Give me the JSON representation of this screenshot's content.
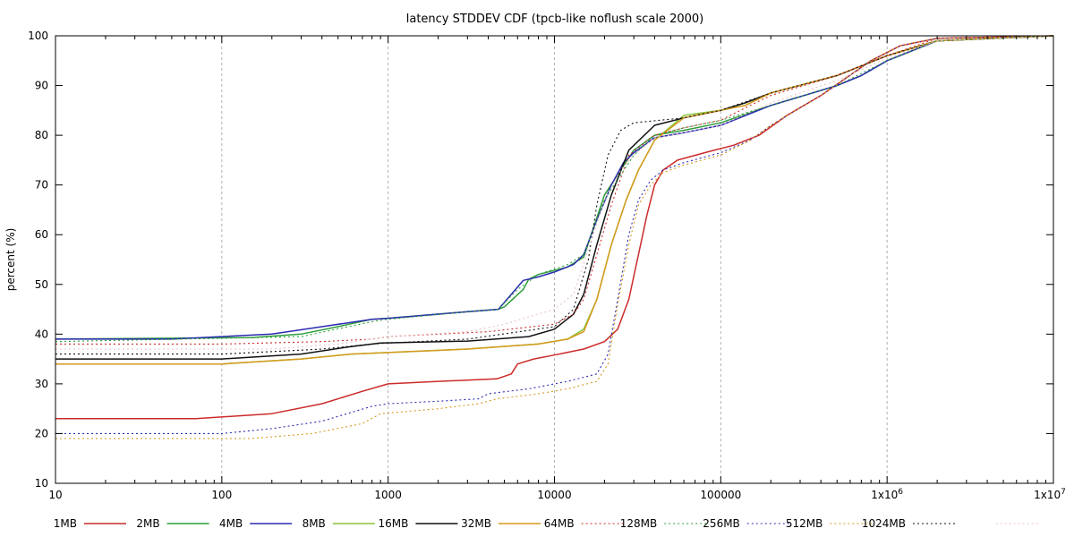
{
  "chart_data": {
    "type": "line",
    "title": "latency STDDEV CDF (tpcb-like noflush scale 2000)",
    "xlabel": "",
    "ylabel": "percent (%)",
    "x_scale": "log",
    "xlim": [
      10,
      10000000
    ],
    "ylim": [
      10,
      100
    ],
    "x_ticks": [
      {
        "value": 10,
        "label": "10",
        "sup": ""
      },
      {
        "value": 100,
        "label": "100",
        "sup": ""
      },
      {
        "value": 1000,
        "label": "1000",
        "sup": ""
      },
      {
        "value": 10000,
        "label": "10000",
        "sup": ""
      },
      {
        "value": 100000,
        "label": "100000",
        "sup": ""
      },
      {
        "value": 1000000,
        "label": "1x10",
        "sup": "6"
      },
      {
        "value": 10000000,
        "label": "1x10",
        "sup": "7"
      }
    ],
    "y_ticks": [
      10,
      20,
      30,
      40,
      50,
      60,
      70,
      80,
      90,
      100
    ],
    "grid_x": true,
    "grid_y": false,
    "legend_position": "bottom",
    "series": [
      {
        "name": "1MB",
        "color": "#cc2a2a",
        "dash": "solid",
        "points": [
          [
            10,
            23
          ],
          [
            70,
            23
          ],
          [
            200,
            24
          ],
          [
            400,
            26
          ],
          [
            700,
            28.5
          ],
          [
            1000,
            30
          ],
          [
            2000,
            30.5
          ],
          [
            4500,
            31
          ],
          [
            5500,
            32
          ],
          [
            6000,
            34
          ],
          [
            7500,
            35
          ],
          [
            10000,
            35.8
          ],
          [
            15000,
            37
          ],
          [
            20000,
            38.5
          ],
          [
            24000,
            41
          ],
          [
            28000,
            47
          ],
          [
            32000,
            56
          ],
          [
            36000,
            64
          ],
          [
            40000,
            70
          ],
          [
            45000,
            73
          ],
          [
            55000,
            75
          ],
          [
            80000,
            76.5
          ],
          [
            120000,
            78
          ],
          [
            170000,
            80
          ],
          [
            250000,
            84
          ],
          [
            400000,
            88
          ],
          [
            800000,
            95
          ],
          [
            1200000,
            98
          ],
          [
            2000000,
            99.5
          ],
          [
            10000000,
            100
          ]
        ]
      },
      {
        "name": "2MB",
        "color": "#2e9e3a",
        "dash": "solid",
        "points": [
          [
            10,
            39
          ],
          [
            150,
            39.3
          ],
          [
            300,
            40
          ],
          [
            500,
            41.5
          ],
          [
            800,
            43
          ],
          [
            1000,
            43.2
          ],
          [
            3000,
            44.5
          ],
          [
            4600,
            45
          ],
          [
            5000,
            45.5
          ],
          [
            6500,
            49
          ],
          [
            7000,
            51
          ],
          [
            8000,
            52
          ],
          [
            12000,
            53.5
          ],
          [
            15000,
            55.5
          ],
          [
            20000,
            68
          ],
          [
            25000,
            73
          ],
          [
            30000,
            77
          ],
          [
            40000,
            80
          ],
          [
            60000,
            81
          ],
          [
            100000,
            82.5
          ],
          [
            200000,
            86
          ],
          [
            500000,
            90
          ],
          [
            700000,
            92
          ],
          [
            1000000,
            95
          ],
          [
            2000000,
            99
          ],
          [
            10000000,
            100
          ]
        ]
      },
      {
        "name": "4MB",
        "color": "#2b2bb0",
        "dash": "solid",
        "points": [
          [
            10,
            39
          ],
          [
            50,
            39
          ],
          [
            200,
            40
          ],
          [
            400,
            41.5
          ],
          [
            800,
            43
          ],
          [
            1000,
            43.2
          ],
          [
            3000,
            44.5
          ],
          [
            4600,
            45
          ],
          [
            5500,
            48
          ],
          [
            6500,
            50.8
          ],
          [
            8000,
            51.5
          ],
          [
            10000,
            52.5
          ],
          [
            13000,
            54
          ],
          [
            15000,
            56
          ],
          [
            18000,
            63
          ],
          [
            22000,
            70
          ],
          [
            26000,
            74.5
          ],
          [
            30000,
            76.5
          ],
          [
            40000,
            79.5
          ],
          [
            60000,
            80.5
          ],
          [
            100000,
            82
          ],
          [
            200000,
            86
          ],
          [
            500000,
            90
          ],
          [
            700000,
            92
          ],
          [
            1000000,
            95
          ],
          [
            2000000,
            99
          ],
          [
            10000000,
            100
          ]
        ]
      },
      {
        "name": "8MB",
        "color": "#8ac43a",
        "dash": "solid",
        "points": [
          [
            10,
            34
          ],
          [
            100,
            34
          ],
          [
            300,
            35
          ],
          [
            600,
            36
          ],
          [
            1000,
            36.3
          ],
          [
            3000,
            37
          ],
          [
            8000,
            38
          ],
          [
            12000,
            39
          ],
          [
            15000,
            41
          ],
          [
            18000,
            47
          ],
          [
            22000,
            58
          ],
          [
            27000,
            67
          ],
          [
            32000,
            73
          ],
          [
            40000,
            79
          ],
          [
            60000,
            84
          ],
          [
            100000,
            85
          ],
          [
            140000,
            86
          ],
          [
            200000,
            88.5
          ],
          [
            500000,
            92
          ],
          [
            1000000,
            96
          ],
          [
            2000000,
            99
          ],
          [
            10000000,
            100
          ]
        ]
      },
      {
        "name": "16MB",
        "color": "#111111",
        "dash": "solid",
        "points": [
          [
            10,
            35
          ],
          [
            100,
            35
          ],
          [
            300,
            36
          ],
          [
            600,
            37.5
          ],
          [
            900,
            38.2
          ],
          [
            3000,
            38.6
          ],
          [
            7000,
            39.5
          ],
          [
            10000,
            41
          ],
          [
            13000,
            44
          ],
          [
            15000,
            48
          ],
          [
            18000,
            58
          ],
          [
            22000,
            68
          ],
          [
            28000,
            77
          ],
          [
            40000,
            82
          ],
          [
            60000,
            83.5
          ],
          [
            100000,
            85
          ],
          [
            140000,
            86.5
          ],
          [
            200000,
            88.5
          ],
          [
            500000,
            92
          ],
          [
            1000000,
            96
          ],
          [
            2000000,
            99
          ],
          [
            10000000,
            100
          ]
        ]
      },
      {
        "name": "32MB",
        "color": "#d69a1e",
        "dash": "solid",
        "points": [
          [
            10,
            34
          ],
          [
            100,
            34
          ],
          [
            300,
            35
          ],
          [
            600,
            36
          ],
          [
            1000,
            36.3
          ],
          [
            3000,
            37
          ],
          [
            8000,
            38
          ],
          [
            12000,
            39
          ],
          [
            15000,
            40.5
          ],
          [
            18000,
            47
          ],
          [
            22000,
            58
          ],
          [
            27000,
            67
          ],
          [
            32000,
            73
          ],
          [
            40000,
            79
          ],
          [
            60000,
            83.5
          ],
          [
            100000,
            85
          ],
          [
            140000,
            86
          ],
          [
            200000,
            88.5
          ],
          [
            500000,
            92
          ],
          [
            1000000,
            96
          ],
          [
            2000000,
            99
          ],
          [
            10000000,
            100
          ]
        ]
      },
      {
        "name": "64MB",
        "color": "#cc2a2a",
        "dash": "dotted",
        "points": [
          [
            10,
            38
          ],
          [
            100,
            38
          ],
          [
            400,
            38.5
          ],
          [
            800,
            39
          ],
          [
            1000,
            39.5
          ],
          [
            4000,
            40.5
          ],
          [
            10000,
            42
          ],
          [
            13000,
            44
          ],
          [
            15000,
            47
          ],
          [
            18000,
            56
          ],
          [
            22000,
            66
          ],
          [
            28000,
            76
          ],
          [
            40000,
            80
          ],
          [
            60000,
            81.5
          ],
          [
            100000,
            83
          ],
          [
            150000,
            86
          ],
          [
            200000,
            88
          ],
          [
            500000,
            92
          ],
          [
            1000000,
            96
          ],
          [
            2000000,
            99.5
          ],
          [
            10000000,
            100
          ]
        ]
      },
      {
        "name": "128MB",
        "color": "#2e9e3a",
        "dash": "dotted",
        "points": [
          [
            10,
            38.5
          ],
          [
            300,
            39.5
          ],
          [
            800,
            42.5
          ],
          [
            1000,
            43
          ],
          [
            3000,
            44.5
          ],
          [
            4600,
            45
          ],
          [
            6000,
            49
          ],
          [
            8000,
            52
          ],
          [
            12000,
            54
          ],
          [
            15000,
            56
          ],
          [
            20000,
            67
          ],
          [
            25000,
            72
          ],
          [
            30000,
            76
          ],
          [
            40000,
            80
          ],
          [
            60000,
            81.5
          ],
          [
            100000,
            83
          ],
          [
            200000,
            86
          ],
          [
            500000,
            90
          ],
          [
            1000000,
            95
          ],
          [
            2000000,
            99
          ],
          [
            10000000,
            100
          ]
        ]
      },
      {
        "name": "256MB",
        "color": "#2b2bb0",
        "dash": "dotted",
        "points": [
          [
            10,
            20
          ],
          [
            100,
            20
          ],
          [
            200,
            21
          ],
          [
            400,
            22.5
          ],
          [
            800,
            25.5
          ],
          [
            1000,
            26
          ],
          [
            2000,
            26.5
          ],
          [
            3500,
            27
          ],
          [
            4000,
            28
          ],
          [
            7000,
            29
          ],
          [
            12000,
            30.5
          ],
          [
            18000,
            32
          ],
          [
            21000,
            36
          ],
          [
            24000,
            47
          ],
          [
            28000,
            60
          ],
          [
            32000,
            67
          ],
          [
            38000,
            71
          ],
          [
            45000,
            73
          ],
          [
            60000,
            74.5
          ],
          [
            100000,
            76.5
          ],
          [
            150000,
            79
          ],
          [
            200000,
            82
          ],
          [
            400000,
            88
          ],
          [
            800000,
            95
          ],
          [
            1200000,
            98
          ],
          [
            2000000,
            99.5
          ],
          [
            10000000,
            100
          ]
        ]
      },
      {
        "name": "512MB",
        "color": "#d69a1e",
        "dash": "dotted",
        "points": [
          [
            10,
            19
          ],
          [
            150,
            19
          ],
          [
            350,
            20
          ],
          [
            700,
            22
          ],
          [
            900,
            24
          ],
          [
            2000,
            25
          ],
          [
            3500,
            26
          ],
          [
            4500,
            27
          ],
          [
            8000,
            28
          ],
          [
            12000,
            29
          ],
          [
            18000,
            30.5
          ],
          [
            21000,
            34
          ],
          [
            24000,
            46
          ],
          [
            28000,
            58
          ],
          [
            32000,
            66
          ],
          [
            38000,
            70
          ],
          [
            45000,
            72.5
          ],
          [
            60000,
            74
          ],
          [
            100000,
            76
          ],
          [
            150000,
            79
          ],
          [
            200000,
            82
          ],
          [
            400000,
            88
          ],
          [
            800000,
            95
          ],
          [
            1200000,
            98
          ],
          [
            2000000,
            99.5
          ],
          [
            10000000,
            100
          ]
        ]
      },
      {
        "name": "1024MB",
        "color": "#111111",
        "dash": "dotted",
        "points": [
          [
            10,
            36
          ],
          [
            100,
            36
          ],
          [
            400,
            37
          ],
          [
            800,
            38
          ],
          [
            1000,
            38.2
          ],
          [
            3000,
            39
          ],
          [
            10000,
            41.5
          ],
          [
            13000,
            45
          ],
          [
            16000,
            55
          ],
          [
            18000,
            66
          ],
          [
            21000,
            76
          ],
          [
            25000,
            81
          ],
          [
            30000,
            82.5
          ],
          [
            60000,
            83.5
          ],
          [
            100000,
            85
          ],
          [
            200000,
            88.5
          ],
          [
            500000,
            92
          ],
          [
            1000000,
            96
          ],
          [
            2000000,
            99
          ],
          [
            10000000,
            100
          ]
        ]
      },
      {
        "name": "",
        "color": "#e8c4c4",
        "dash": "dotted",
        "points": [
          [
            10,
            37
          ],
          [
            200,
            37
          ],
          [
            500,
            38
          ],
          [
            1000,
            39.5
          ],
          [
            3000,
            40.5
          ],
          [
            5000,
            42
          ],
          [
            10000,
            45
          ],
          [
            13000,
            48
          ],
          [
            16000,
            57
          ],
          [
            20000,
            67
          ],
          [
            25000,
            73
          ],
          [
            30000,
            76
          ],
          [
            40000,
            79.5
          ],
          [
            60000,
            80.5
          ],
          [
            100000,
            82
          ],
          [
            200000,
            86.5
          ],
          [
            500000,
            91
          ],
          [
            1000000,
            95.5
          ],
          [
            2000000,
            99
          ],
          [
            10000000,
            100
          ]
        ]
      }
    ]
  }
}
